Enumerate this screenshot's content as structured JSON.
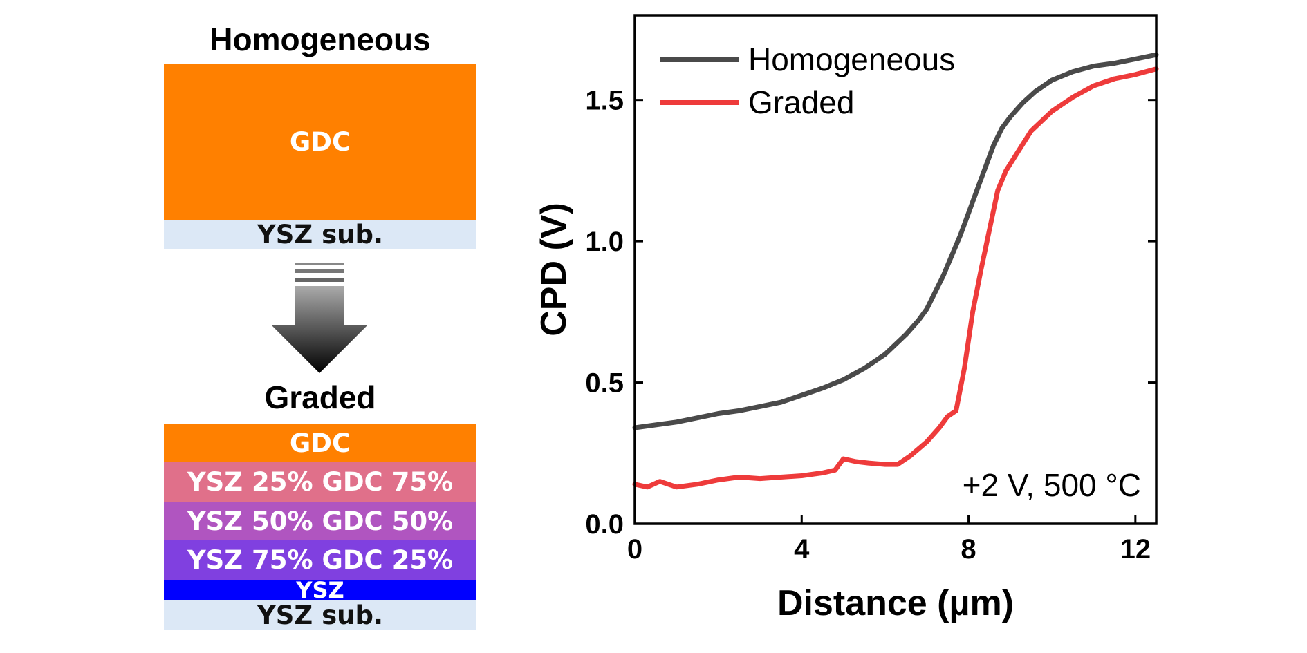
{
  "schematic": {
    "homogeneous": {
      "title": "Homogeneous",
      "layers": [
        {
          "label": "GDC",
          "color": "#FF8000"
        },
        {
          "label": "YSZ sub.",
          "color": "#DCE8F6"
        }
      ]
    },
    "graded": {
      "title": "Graded",
      "layers": [
        {
          "label": "GDC",
          "color": "#FF8000"
        },
        {
          "label": "YSZ 25% GDC 75%",
          "color": "#E0708A"
        },
        {
          "label": "YSZ 50% GDC 50%",
          "color": "#B055C0"
        },
        {
          "label": "YSZ 75% GDC 25%",
          "color": "#8040E0"
        },
        {
          "label": "YSZ",
          "color": "#0000FF"
        },
        {
          "label": "YSZ sub.",
          "color": "#DCE8F6"
        }
      ]
    }
  },
  "chart_data": {
    "type": "line",
    "xlabel": "Distance (µm)",
    "ylabel": "CPD (V)",
    "xlim": [
      0,
      12.5
    ],
    "ylim": [
      0,
      1.8
    ],
    "xticks": [
      0,
      4,
      8,
      12
    ],
    "yticks": [
      0.0,
      0.5,
      1.0,
      1.5
    ],
    "grid": false,
    "legend": "top-left",
    "annotation": "+2 V, 500 °C",
    "series": [
      {
        "name": "Homogeneous",
        "color": "#4A4A4A",
        "x": [
          0,
          0.5,
          1,
          1.5,
          2,
          2.5,
          3,
          3.5,
          4,
          4.5,
          5,
          5.5,
          6,
          6.5,
          6.8,
          7,
          7.2,
          7.4,
          7.6,
          7.8,
          8,
          8.2,
          8.4,
          8.6,
          8.8,
          9,
          9.3,
          9.6,
          10,
          10.5,
          11,
          11.5,
          12,
          12.5
        ],
        "y": [
          0.34,
          0.35,
          0.36,
          0.375,
          0.39,
          0.4,
          0.415,
          0.43,
          0.455,
          0.48,
          0.51,
          0.55,
          0.6,
          0.67,
          0.72,
          0.76,
          0.82,
          0.88,
          0.95,
          1.02,
          1.1,
          1.18,
          1.26,
          1.34,
          1.4,
          1.44,
          1.49,
          1.53,
          1.57,
          1.6,
          1.62,
          1.63,
          1.645,
          1.66
        ]
      },
      {
        "name": "Graded",
        "color": "#EE3B3B",
        "x": [
          0,
          0.3,
          0.6,
          1,
          1.5,
          2,
          2.5,
          3,
          3.5,
          4,
          4.5,
          4.8,
          5,
          5.3,
          5.6,
          6,
          6.3,
          6.6,
          7,
          7.3,
          7.5,
          7.7,
          7.9,
          8.1,
          8.3,
          8.5,
          8.7,
          8.9,
          9.2,
          9.5,
          10,
          10.5,
          11,
          11.5,
          12,
          12.5
        ],
        "y": [
          0.14,
          0.13,
          0.15,
          0.13,
          0.14,
          0.155,
          0.165,
          0.16,
          0.165,
          0.17,
          0.18,
          0.19,
          0.23,
          0.22,
          0.215,
          0.21,
          0.21,
          0.24,
          0.29,
          0.34,
          0.38,
          0.4,
          0.55,
          0.75,
          0.9,
          1.04,
          1.18,
          1.25,
          1.32,
          1.39,
          1.46,
          1.51,
          1.55,
          1.575,
          1.59,
          1.61
        ]
      }
    ]
  }
}
